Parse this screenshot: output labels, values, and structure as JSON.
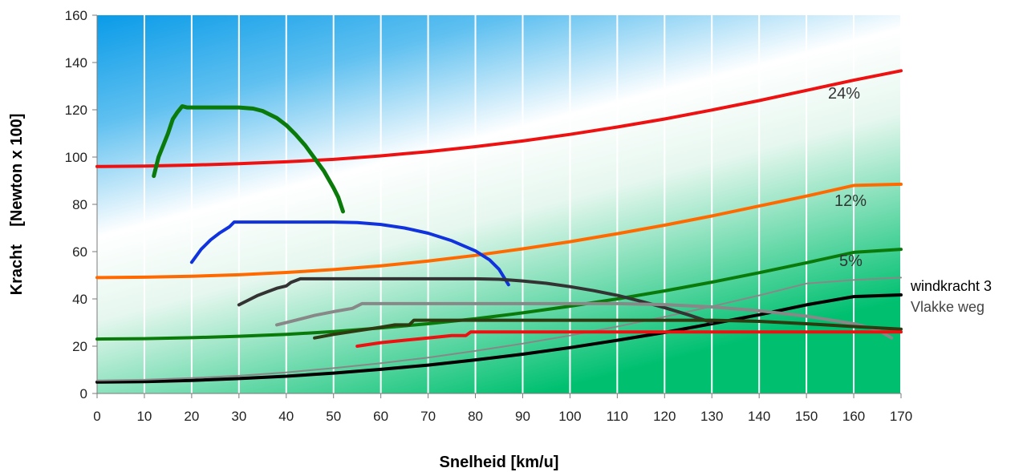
{
  "chart_data": {
    "type": "line",
    "xlabel": "Snelheid [km/u]",
    "ylabel": "Kracht    [Newton x 100]",
    "xlim": [
      0,
      170
    ],
    "ylim": [
      0,
      160
    ],
    "xticks": [
      0,
      10,
      20,
      30,
      40,
      50,
      60,
      70,
      80,
      90,
      100,
      110,
      120,
      130,
      140,
      150,
      160,
      170
    ],
    "yticks": [
      0,
      20,
      40,
      60,
      80,
      100,
      120,
      140,
      160
    ],
    "grid": "vertical",
    "background": "gradient blue (top-left) to white to green (bottom-right)",
    "colors": {
      "red": "#ee1111",
      "orange": "#ff6a00",
      "green": "#0a7a0a",
      "blue": "#1133dd",
      "dark_gray": "#333333",
      "gray": "#888888",
      "dark_olive": "#2e3a10",
      "black": "#000000",
      "thin_gray": "#888888",
      "bg_top": "#0a9be8",
      "bg_bottom": "#00c070"
    },
    "series": [
      {
        "label": "24%",
        "color": "#ee1111",
        "width": 4,
        "x": [
          0,
          10,
          20,
          30,
          40,
          50,
          60,
          70,
          80,
          90,
          100,
          110,
          120,
          130,
          140,
          150,
          160,
          170
        ],
        "y": [
          96,
          96.2,
          96.6,
          97.2,
          98,
          99,
          100.5,
          102.3,
          104.4,
          106.8,
          109.6,
          112.7,
          116.1,
          119.9,
          123.9,
          128.2,
          132.5,
          136.5
        ]
      },
      {
        "label": "12%",
        "color": "#ff6a00",
        "width": 4,
        "x": [
          0,
          10,
          20,
          30,
          40,
          50,
          60,
          70,
          80,
          90,
          100,
          110,
          120,
          130,
          140,
          150,
          160,
          170
        ],
        "y": [
          49,
          49.2,
          49.6,
          50.2,
          51.2,
          52.4,
          54,
          56,
          58.4,
          61.2,
          64.2,
          67.6,
          71.2,
          75.1,
          79.3,
          83.5,
          88,
          88.5
        ]
      },
      {
        "label": "5%",
        "color": "#0a7a0a",
        "width": 4,
        "x": [
          0,
          10,
          20,
          30,
          40,
          50,
          60,
          70,
          80,
          90,
          100,
          110,
          120,
          130,
          140,
          150,
          160,
          170
        ],
        "y": [
          23,
          23.2,
          23.6,
          24.2,
          25,
          26.2,
          27.7,
          29.5,
          31.6,
          34.1,
          36.9,
          40,
          43.4,
          47.1,
          51.1,
          55.3,
          59.7,
          61
        ]
      },
      {
        "label": "Vlakke weg",
        "color": "#000000",
        "width": 4,
        "x": [
          0,
          10,
          20,
          30,
          40,
          50,
          60,
          70,
          80,
          90,
          100,
          110,
          120,
          130,
          140,
          150,
          160,
          170
        ],
        "y": [
          4.8,
          5,
          5.5,
          6.3,
          7.3,
          8.6,
          10.2,
          12,
          14.2,
          16.6,
          19.4,
          22.5,
          25.8,
          29.5,
          33.3,
          37.5,
          41,
          41.7
        ]
      },
      {
        "label": "windkracht 3",
        "color": "#888888",
        "width": 2,
        "x": [
          0,
          10,
          20,
          30,
          40,
          50,
          60,
          70,
          80,
          90,
          100,
          110,
          120,
          130,
          140,
          150,
          160,
          170
        ],
        "y": [
          5.5,
          5.8,
          6.5,
          7.5,
          8.9,
          10.7,
          12.8,
          15.2,
          18,
          21.1,
          24.5,
          28.3,
          32.4,
          36.8,
          41.5,
          46.5,
          48,
          49
        ]
      },
      {
        "label": "",
        "color": "#0a7a0a",
        "width": 5,
        "x": [
          12,
          13,
          14,
          15,
          16,
          17,
          18,
          19,
          20,
          25,
          30,
          33,
          35,
          38,
          40,
          42,
          44,
          46,
          48,
          50,
          51,
          52
        ],
        "y": [
          92,
          100,
          105,
          110,
          116,
          119,
          121.5,
          121,
          121,
          121,
          121,
          120.5,
          119.5,
          116.5,
          113.5,
          109.5,
          105,
          99.5,
          94,
          87,
          83,
          77
        ]
      },
      {
        "label": "",
        "color": "#1133dd",
        "width": 4,
        "x": [
          20,
          22,
          24,
          26,
          28,
          29,
          30,
          40,
          50,
          55,
          60,
          65,
          70,
          75,
          80,
          83,
          85,
          87
        ],
        "y": [
          55.5,
          61,
          65,
          68,
          70.5,
          72.5,
          72.5,
          72.5,
          72.5,
          72.3,
          71.5,
          70,
          67.8,
          64.6,
          60.3,
          56.5,
          52.5,
          46
        ]
      },
      {
        "label": "",
        "color": "#333333",
        "width": 4,
        "x": [
          30,
          32,
          34,
          36,
          38,
          40,
          41,
          43,
          50,
          60,
          70,
          80,
          85,
          90,
          95,
          100,
          105,
          110,
          115,
          120,
          125,
          130
        ],
        "y": [
          37.5,
          39.5,
          41.5,
          43,
          44.5,
          45.5,
          47,
          48.5,
          48.5,
          48.5,
          48.5,
          48.5,
          48.3,
          47.6,
          46.6,
          45.2,
          43.5,
          41.5,
          39,
          36.3,
          33.3,
          30
        ]
      },
      {
        "label": "",
        "color": "#888888",
        "width": 4,
        "x": [
          38,
          42,
          46,
          50,
          54,
          56,
          60,
          70,
          80,
          90,
          100,
          110,
          120,
          130,
          140,
          150,
          160,
          165,
          168
        ],
        "y": [
          29,
          31,
          33,
          34.6,
          36,
          38,
          38,
          38,
          38,
          38,
          38,
          38,
          37.6,
          36.6,
          35,
          32.7,
          29.5,
          27,
          23.5
        ]
      },
      {
        "label": "",
        "color": "#2e3a10",
        "width": 4,
        "x": [
          46,
          50,
          55,
          60,
          63,
          66,
          67,
          70,
          80,
          90,
          100,
          110,
          120,
          130,
          140,
          150,
          160,
          170
        ],
        "y": [
          23.5,
          25,
          26.5,
          28,
          29,
          29,
          31,
          31,
          31,
          31,
          31,
          31,
          31,
          31,
          30.5,
          29.5,
          28.3,
          27.2
        ]
      },
      {
        "label": "",
        "color": "#ee1111",
        "width": 4,
        "x": [
          55,
          60,
          65,
          70,
          75,
          78,
          79,
          80,
          90,
          100,
          110,
          120,
          130,
          140,
          150,
          160,
          170
        ],
        "y": [
          20,
          21.5,
          22.5,
          23.5,
          24.5,
          24.5,
          26,
          26,
          26,
          26,
          26,
          26,
          26,
          26,
          26,
          26,
          26
        ]
      }
    ],
    "annotations": {
      "p24": "24%",
      "p12": "12%",
      "p5": "5%",
      "wind": "windkracht 3",
      "flat": "Vlakke weg"
    }
  }
}
